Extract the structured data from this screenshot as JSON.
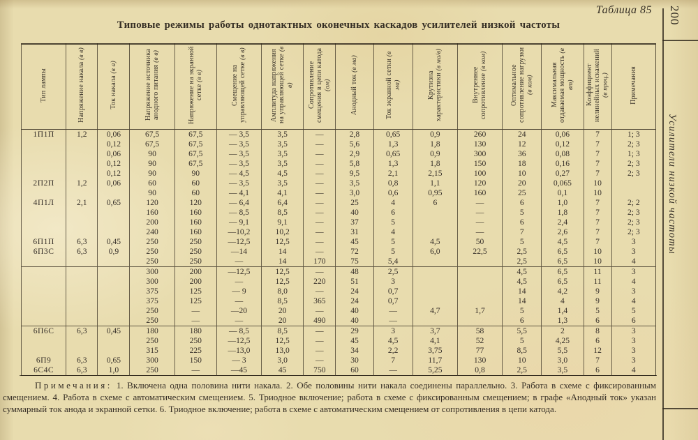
{
  "page": {
    "table_label": "Таблица 85",
    "page_number": "200",
    "margin_caption": "Усилители низкой частоты",
    "title": "Типовые режимы работы однотактных оконечных каскадов усилителей низкой частоты"
  },
  "table": {
    "columns": [
      "Тип лампы",
      "Напряжение накала (в в)",
      "Ток накала (в а)",
      "Напряжение источника анодного питания (в в)",
      "Напряжение на экранной сетке (в в)",
      "Смещение на управляющей сетке (в в)",
      "Амплитуда напряжения на управляющей сетке (в в)",
      "Сопротивление смещения в цепи катода (ом)",
      "Анодный ток (в ма)",
      "Ток экранной сетки (в ма)",
      "Крутизна характеристики (в ма/в)",
      "Внутреннее сопротивление (в ком)",
      "Оптимальное сопротивление нагрузки (в ком)",
      "Максимальная отдаваемая мощность (в вт)",
      "Коэффициент нелинейных искажений (в проц.)",
      "Примечания"
    ],
    "rows": [
      [
        "1П1П",
        "1,2",
        "0,06",
        "67,5",
        "67,5",
        "— 3,5",
        "3,5",
        "—",
        "2,8",
        "0,65",
        "0,9",
        "260",
        "24",
        "0,06",
        "7",
        "1; 3"
      ],
      [
        "",
        "",
        "0,12",
        "67,5",
        "67,5",
        "— 3,5",
        "3,5",
        "—",
        "5,6",
        "1,3",
        "1,8",
        "130",
        "12",
        "0,12",
        "7",
        "2; 3"
      ],
      [
        "",
        "",
        "0,06",
        "90",
        "67,5",
        "— 3,5",
        "3,5",
        "—",
        "2,9",
        "0,65",
        "0,9",
        "300",
        "36",
        "0,08",
        "7",
        "1; 3"
      ],
      [
        "",
        "",
        "0,12",
        "90",
        "67,5",
        "— 3,5",
        "3,5",
        "—",
        "5,8",
        "1,3",
        "1,8",
        "150",
        "18",
        "0,16",
        "7",
        "2; 3"
      ],
      [
        "",
        "",
        "0,12",
        "90",
        "90",
        "— 4,5",
        "4,5",
        "—",
        "9,5",
        "2,1",
        "2,15",
        "100",
        "10",
        "0,27",
        "7",
        "2; 3"
      ],
      [
        "2П2П",
        "1,2",
        "0,06",
        "60",
        "60",
        "— 3,5",
        "3,5",
        "—",
        "3,5",
        "0,8",
        "1,1",
        "120",
        "20",
        "0,065",
        "10",
        ""
      ],
      [
        "",
        "",
        "",
        "90",
        "60",
        "— 4,1",
        "4,1",
        "—",
        "3,0",
        "0,6",
        "0,95",
        "160",
        "25",
        "0,1",
        "10",
        ""
      ],
      [
        "4П1Л",
        "2,1",
        "0,65",
        "120",
        "120",
        "— 6,4",
        "6,4",
        "—",
        "25",
        "4",
        "6",
        "—",
        "6",
        "1,0",
        "7",
        "2; 2"
      ],
      [
        "",
        "",
        "",
        "160",
        "160",
        "— 8,5",
        "8,5",
        "—",
        "40",
        "6",
        "",
        "—",
        "5",
        "1,8",
        "7",
        "2; 3"
      ],
      [
        "",
        "",
        "",
        "200",
        "160",
        "— 9,1",
        "9,1",
        "—",
        "37",
        "5",
        "",
        "—",
        "6",
        "2,4",
        "7",
        "2; 3"
      ],
      [
        "",
        "",
        "",
        "240",
        "160",
        "—10,2",
        "10,2",
        "—",
        "31",
        "4",
        "",
        "—",
        "7",
        "2,6",
        "7",
        "2; 3"
      ],
      [
        "6П1П",
        "6,3",
        "0,45",
        "250",
        "250",
        "—12,5",
        "12,5",
        "—",
        "45",
        "5",
        "4,5",
        "50",
        "5",
        "4,5",
        "7",
        "3"
      ],
      [
        "6П3С",
        "6,3",
        "0,9",
        "250",
        "250",
        "—14",
        "14",
        "—",
        "72",
        "5",
        "6,0",
        "22,5",
        "2,5",
        "6,5",
        "10",
        "3"
      ],
      [
        "",
        "",
        "",
        "250",
        "250",
        "—",
        "14",
        "170",
        "75",
        "5,4",
        "",
        "",
        "2,5",
        "6,5",
        "10",
        "4"
      ],
      [
        "",
        "",
        "",
        "300",
        "200",
        "—12,5",
        "12,5",
        "—",
        "48",
        "2,5",
        "",
        "",
        "4,5",
        "6,5",
        "11",
        "3"
      ],
      [
        "",
        "",
        "",
        "300",
        "200",
        "—",
        "12,5",
        "220",
        "51",
        "3",
        "",
        "",
        "4,5",
        "6,5",
        "11",
        "4"
      ],
      [
        "",
        "",
        "",
        "375",
        "125",
        "— 9",
        "8,0",
        "—",
        "24",
        "0,7",
        "",
        "",
        "14",
        "4,2",
        "9",
        "3"
      ],
      [
        "",
        "",
        "",
        "375",
        "125",
        "—",
        "8,5",
        "365",
        "24",
        "0,7",
        "",
        "",
        "14",
        "4",
        "9",
        "4"
      ],
      [
        "",
        "",
        "",
        "250",
        "—",
        "—20",
        "20",
        "—",
        "40",
        "—",
        "4,7",
        "1,7",
        "5",
        "1,4",
        "5",
        "5"
      ],
      [
        "",
        "",
        "",
        "250",
        "—",
        "—",
        "20",
        "490",
        "40",
        "—",
        "",
        "",
        "6",
        "1,3",
        "6",
        "6"
      ],
      [
        "6П6С",
        "6,3",
        "0,45",
        "180",
        "180",
        "— 8,5",
        "8,5",
        "—",
        "29",
        "3",
        "3,7",
        "58",
        "5,5",
        "2",
        "8",
        "3"
      ],
      [
        "",
        "",
        "",
        "250",
        "250",
        "—12,5",
        "12,5",
        "—",
        "45",
        "4,5",
        "4,1",
        "52",
        "5",
        "4,25",
        "6",
        "3"
      ],
      [
        "",
        "",
        "",
        "315",
        "225",
        "—13,0",
        "13,0",
        "—",
        "34",
        "2,2",
        "3,75",
        "77",
        "8,5",
        "5,5",
        "12",
        "3"
      ],
      [
        "6П9",
        "6,3",
        "0,65",
        "300",
        "150",
        "— 3",
        "3,0",
        "—",
        "30",
        "7",
        "11,7",
        "130",
        "10",
        "3,0",
        "7",
        "3"
      ],
      [
        "6С4С",
        "6,3",
        "1,0",
        "250",
        "—",
        "—45",
        "45",
        "750",
        "60",
        "—",
        "5,25",
        "0,8",
        "2,5",
        "3,5",
        "6",
        "4"
      ]
    ],
    "group_end_rows": [
      13,
      19
    ]
  },
  "notes": {
    "label": "Примечания:",
    "text": "1. Включена одна половина нити накала. 2. Обе половины нити накала соединены параллельно. 3. Работа в схеме с фиксированным смещением. 4. Работа в схеме с автоматическим смещением. 5. Триодное включение; работа в схеме с фиксированным смещением; в графе «Анодный ток» указан суммарный ток анода и экранной сетки. 6. Триодное включение; работа в схеме с автоматическим смещением от сопротивления в цепи катода."
  }
}
